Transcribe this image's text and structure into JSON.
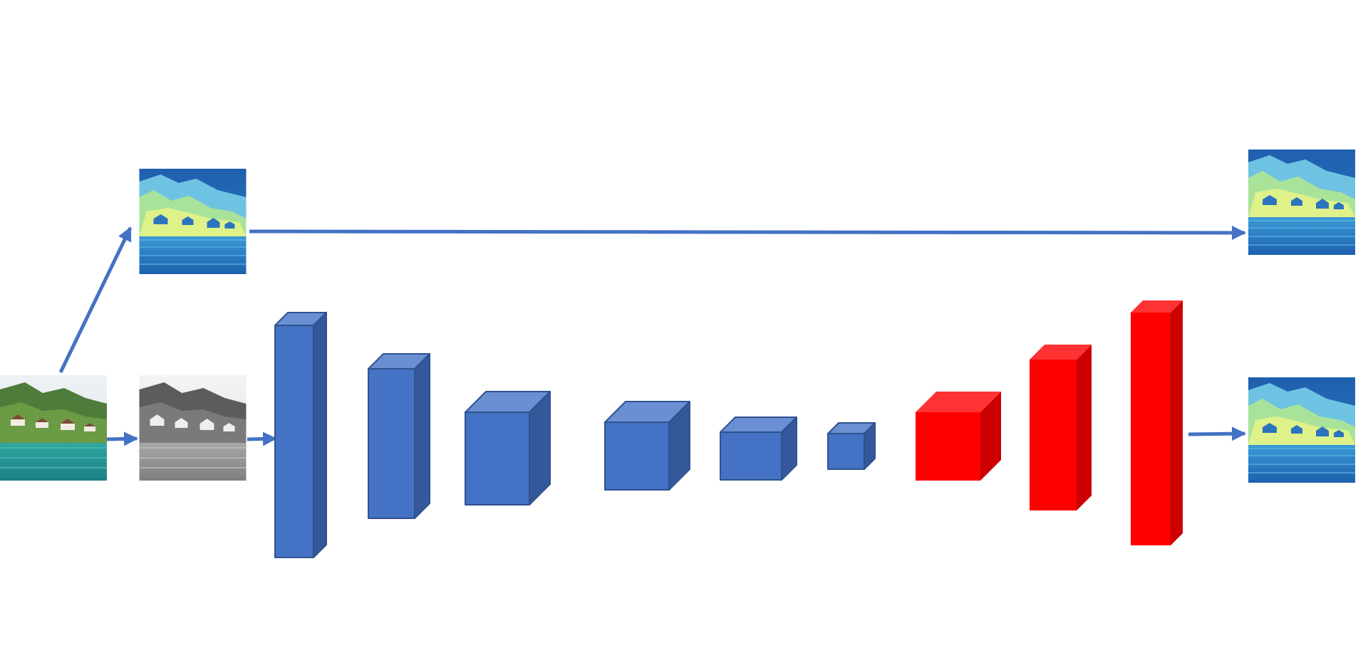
{
  "diagram": {
    "type": "encoder-decoder-network",
    "colors": {
      "encoder_front": "#4472c4",
      "encoder_top": "#6a8fd2",
      "encoder_side": "#34589a",
      "encoder_edge": "#2f528f",
      "decoder_front": "#ff0000",
      "decoder_top": "#ff3333",
      "decoder_side": "#cc0000",
      "arrow": "#4472c4",
      "background": "#ffffff"
    },
    "images": [
      {
        "id": "input-color-image",
        "style": "color-photo"
      },
      {
        "id": "grayscale-image",
        "style": "grayscale-photo"
      },
      {
        "id": "intermediate-blue-map",
        "style": "blue-feature-map"
      },
      {
        "id": "output-skip-map",
        "style": "blue-feature-map"
      },
      {
        "id": "output-decoder-map",
        "style": "blue-feature-map"
      }
    ],
    "encoder_blocks": 6,
    "decoder_blocks": 3
  }
}
